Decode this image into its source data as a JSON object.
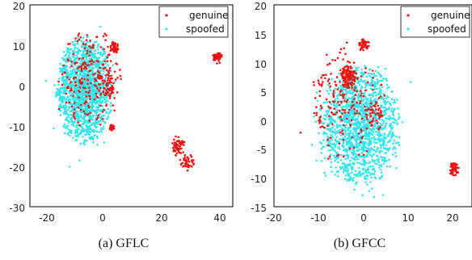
{
  "chart_data": [
    {
      "type": "scatter",
      "caption": "(a) GFLC",
      "xlim": [
        -25,
        42
      ],
      "ylim": [
        -30,
        20
      ],
      "xticks": [
        "-20",
        "0",
        "20",
        "40"
      ],
      "yticks": [
        "20",
        "10",
        "0",
        "-10",
        "-20",
        "-30"
      ],
      "legend_position": "top-right",
      "series": [
        {
          "name": "genuine",
          "color": "#ee1111",
          "clusters": [
            {
              "center": [
                -5,
                2
              ],
              "spread": [
                10,
                12
              ],
              "count": 230
            },
            {
              "center": [
                3,
                9.5
              ],
              "spread": [
                1.3,
                1.5
              ],
              "count": 45
            },
            {
              "center": [
                1,
                0
              ],
              "spread": [
                2,
                3
              ],
              "count": 45
            },
            {
              "center": [
                2,
                -10.5
              ],
              "spread": [
                1,
                1
              ],
              "count": 25
            },
            {
              "center": [
                37,
                7
              ],
              "spread": [
                1.5,
                1.5
              ],
              "count": 50
            },
            {
              "center": [
                24,
                -15
              ],
              "spread": [
                2,
                2.5
              ],
              "count": 60
            },
            {
              "center": [
                27,
                -19
              ],
              "spread": [
                2.5,
                2
              ],
              "count": 40
            }
          ]
        },
        {
          "name": "spoofed",
          "color": "#33e5ea",
          "clusters": [
            {
              "center": [
                -7,
                -1
              ],
              "spread": [
                9,
                13
              ],
              "count": 1500
            }
          ]
        }
      ]
    },
    {
      "type": "scatter",
      "caption": "(b) GFCC",
      "xlim": [
        -20,
        24
      ],
      "ylim": [
        -15,
        20
      ],
      "xticks": [
        "-20",
        "-10",
        "0",
        "10",
        "20"
      ],
      "yticks": [
        "20",
        "15",
        "10",
        "5",
        "0",
        "-5",
        "-10",
        "-15"
      ],
      "legend_position": "top-right",
      "series": [
        {
          "name": "genuine",
          "color": "#ee1111",
          "clusters": [
            {
              "center": [
                -4,
                3
              ],
              "spread": [
                8,
                10
              ],
              "count": 200
            },
            {
              "center": [
                0,
                13
              ],
              "spread": [
                1.2,
                1
              ],
              "count": 45
            },
            {
              "center": [
                -3.5,
                7.5
              ],
              "spread": [
                2,
                2
              ],
              "count": 110
            },
            {
              "center": [
                2,
                1
              ],
              "spread": [
                2,
                2
              ],
              "count": 40
            },
            {
              "center": [
                20,
                -8.5
              ],
              "spread": [
                1,
                1.2
              ],
              "count": 50
            }
          ]
        },
        {
          "name": "spoofed",
          "color": "#33e5ea",
          "clusters": [
            {
              "center": [
                -1,
                -1
              ],
              "spread": [
                9,
                10
              ],
              "count": 1500
            }
          ]
        }
      ]
    }
  ]
}
